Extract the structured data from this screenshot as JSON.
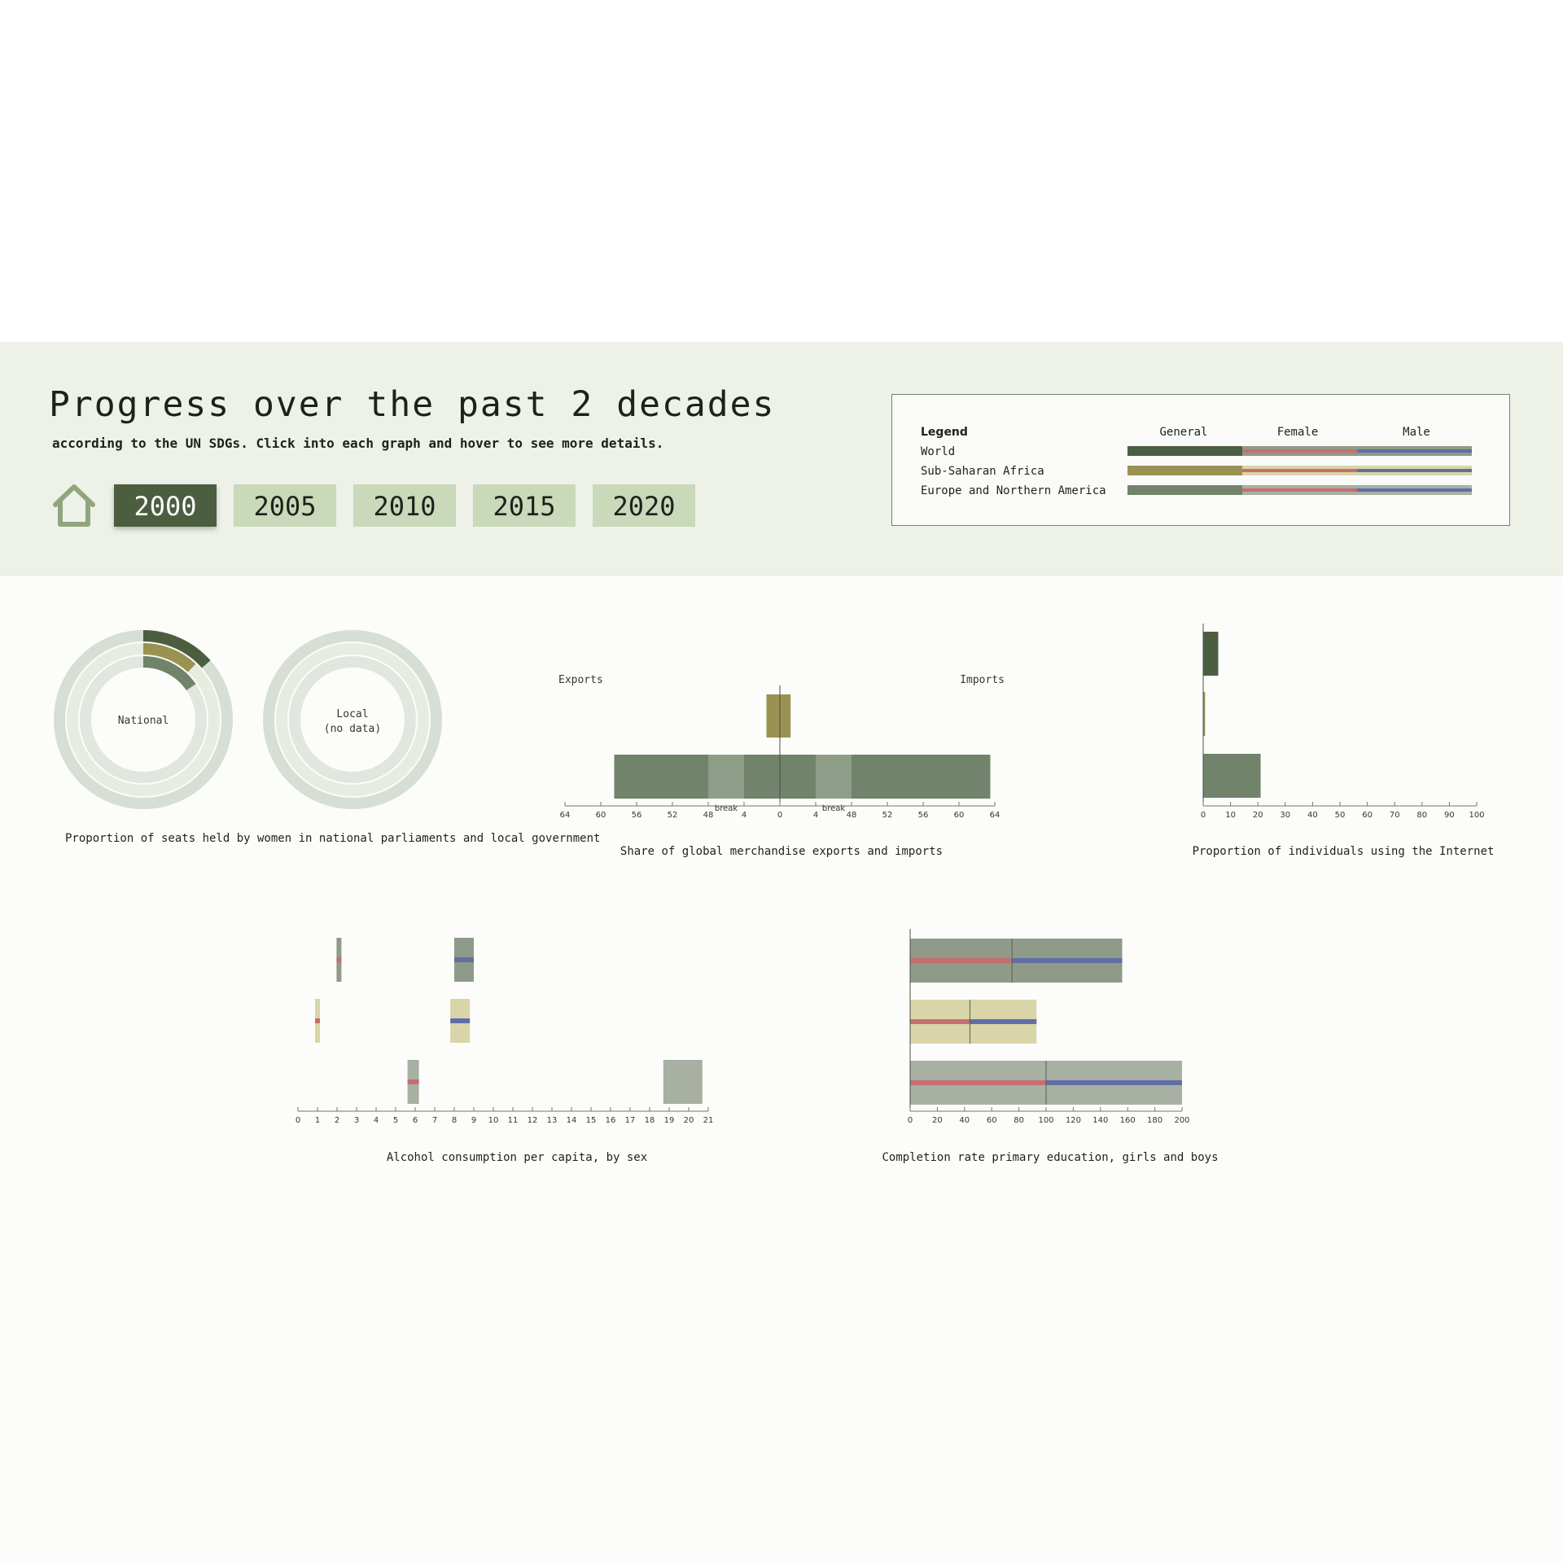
{
  "header": {
    "title": "Progress over the past 2 decades",
    "subtitle": "according to the UN SDGs. Click into each graph and hover to see more details.",
    "home_icon": "home-icon",
    "years": [
      "2000",
      "2005",
      "2010",
      "2015",
      "2020"
    ],
    "active_year": "2000"
  },
  "legend": {
    "title": "Legend",
    "columns": [
      "General",
      "Female",
      "Male"
    ],
    "rows": [
      {
        "label": "World",
        "color": "#4c5e40"
      },
      {
        "label": "Sub-Saharan Africa",
        "color": "#9a9253"
      },
      {
        "label": "Europe and Northern America",
        "color": "#71836a"
      }
    ],
    "female_color": "#c76e6e",
    "male_color": "#5f6fa6"
  },
  "colors": {
    "world": "#4c5e40",
    "ssa": "#9a9253",
    "ena": "#71836a",
    "female": "#c76e6e",
    "male": "#5f6fa6"
  },
  "donut_labels": {
    "national": "National",
    "local_line1": "Local",
    "local_line2": "(no data)"
  },
  "chart_data": [
    {
      "id": "women-seats",
      "type": "pie",
      "title": "Proportion of seats held by women in national parliaments and local government",
      "series": [
        {
          "name": "World",
          "national": 13.5
        },
        {
          "name": "Sub-Saharan Africa",
          "national": 12.0
        },
        {
          "name": "Europe and Northern America",
          "national": 15.5
        }
      ]
    },
    {
      "id": "trade",
      "type": "bar",
      "title": "Share of global merchandise exports and imports",
      "left_label": "Exports",
      "right_label": "Imports",
      "ticks": [
        "64",
        "60",
        "56",
        "52",
        "48",
        "4",
        "0",
        "4",
        "48",
        "52",
        "56",
        "60",
        "64"
      ],
      "break_labels": [
        "break",
        "break"
      ],
      "series": [
        {
          "name": "Sub-Saharan Africa",
          "exports": 1.5,
          "imports": 1.2
        },
        {
          "name": "Europe and Northern America",
          "exports": 58.5,
          "imports": 63.5
        }
      ]
    },
    {
      "id": "internet",
      "type": "bar",
      "title": "Proportion of individuals using the Internet",
      "xlim": [
        0,
        100
      ],
      "ticks": [
        0,
        10,
        20,
        30,
        40,
        50,
        60,
        70,
        80,
        90,
        100
      ],
      "series": [
        {
          "name": "World",
          "value": 5.5
        },
        {
          "name": "Sub-Saharan Africa",
          "value": 0.7
        },
        {
          "name": "Europe and Northern America",
          "value": 21
        }
      ]
    },
    {
      "id": "alcohol",
      "type": "bar",
      "title": "Alcohol consumption per capita, by sex",
      "xlim": [
        0,
        21
      ],
      "ticks": [
        0,
        1,
        2,
        3,
        4,
        5,
        6,
        7,
        8,
        9,
        10,
        11,
        12,
        13,
        14,
        15,
        16,
        17,
        18,
        19,
        20,
        21
      ],
      "series": [
        {
          "name": "World",
          "female": 2.1,
          "male": 8.5
        },
        {
          "name": "Sub-Saharan Africa",
          "female": 1.0,
          "male": 8.3
        },
        {
          "name": "Europe and Northern America",
          "female": 5.9,
          "male": 19.7
        }
      ]
    },
    {
      "id": "completion",
      "type": "bar",
      "title": "Completion rate primary education, girls and boys",
      "xlim": [
        0,
        200
      ],
      "ticks": [
        0,
        20,
        40,
        60,
        80,
        100,
        120,
        140,
        160,
        180,
        200
      ],
      "series": [
        {
          "name": "World",
          "girls": 75,
          "boys": 81
        },
        {
          "name": "Sub-Saharan Africa",
          "girls": 44,
          "boys": 49
        },
        {
          "name": "Europe and Northern America",
          "girls": 100,
          "boys": 100
        }
      ]
    }
  ]
}
